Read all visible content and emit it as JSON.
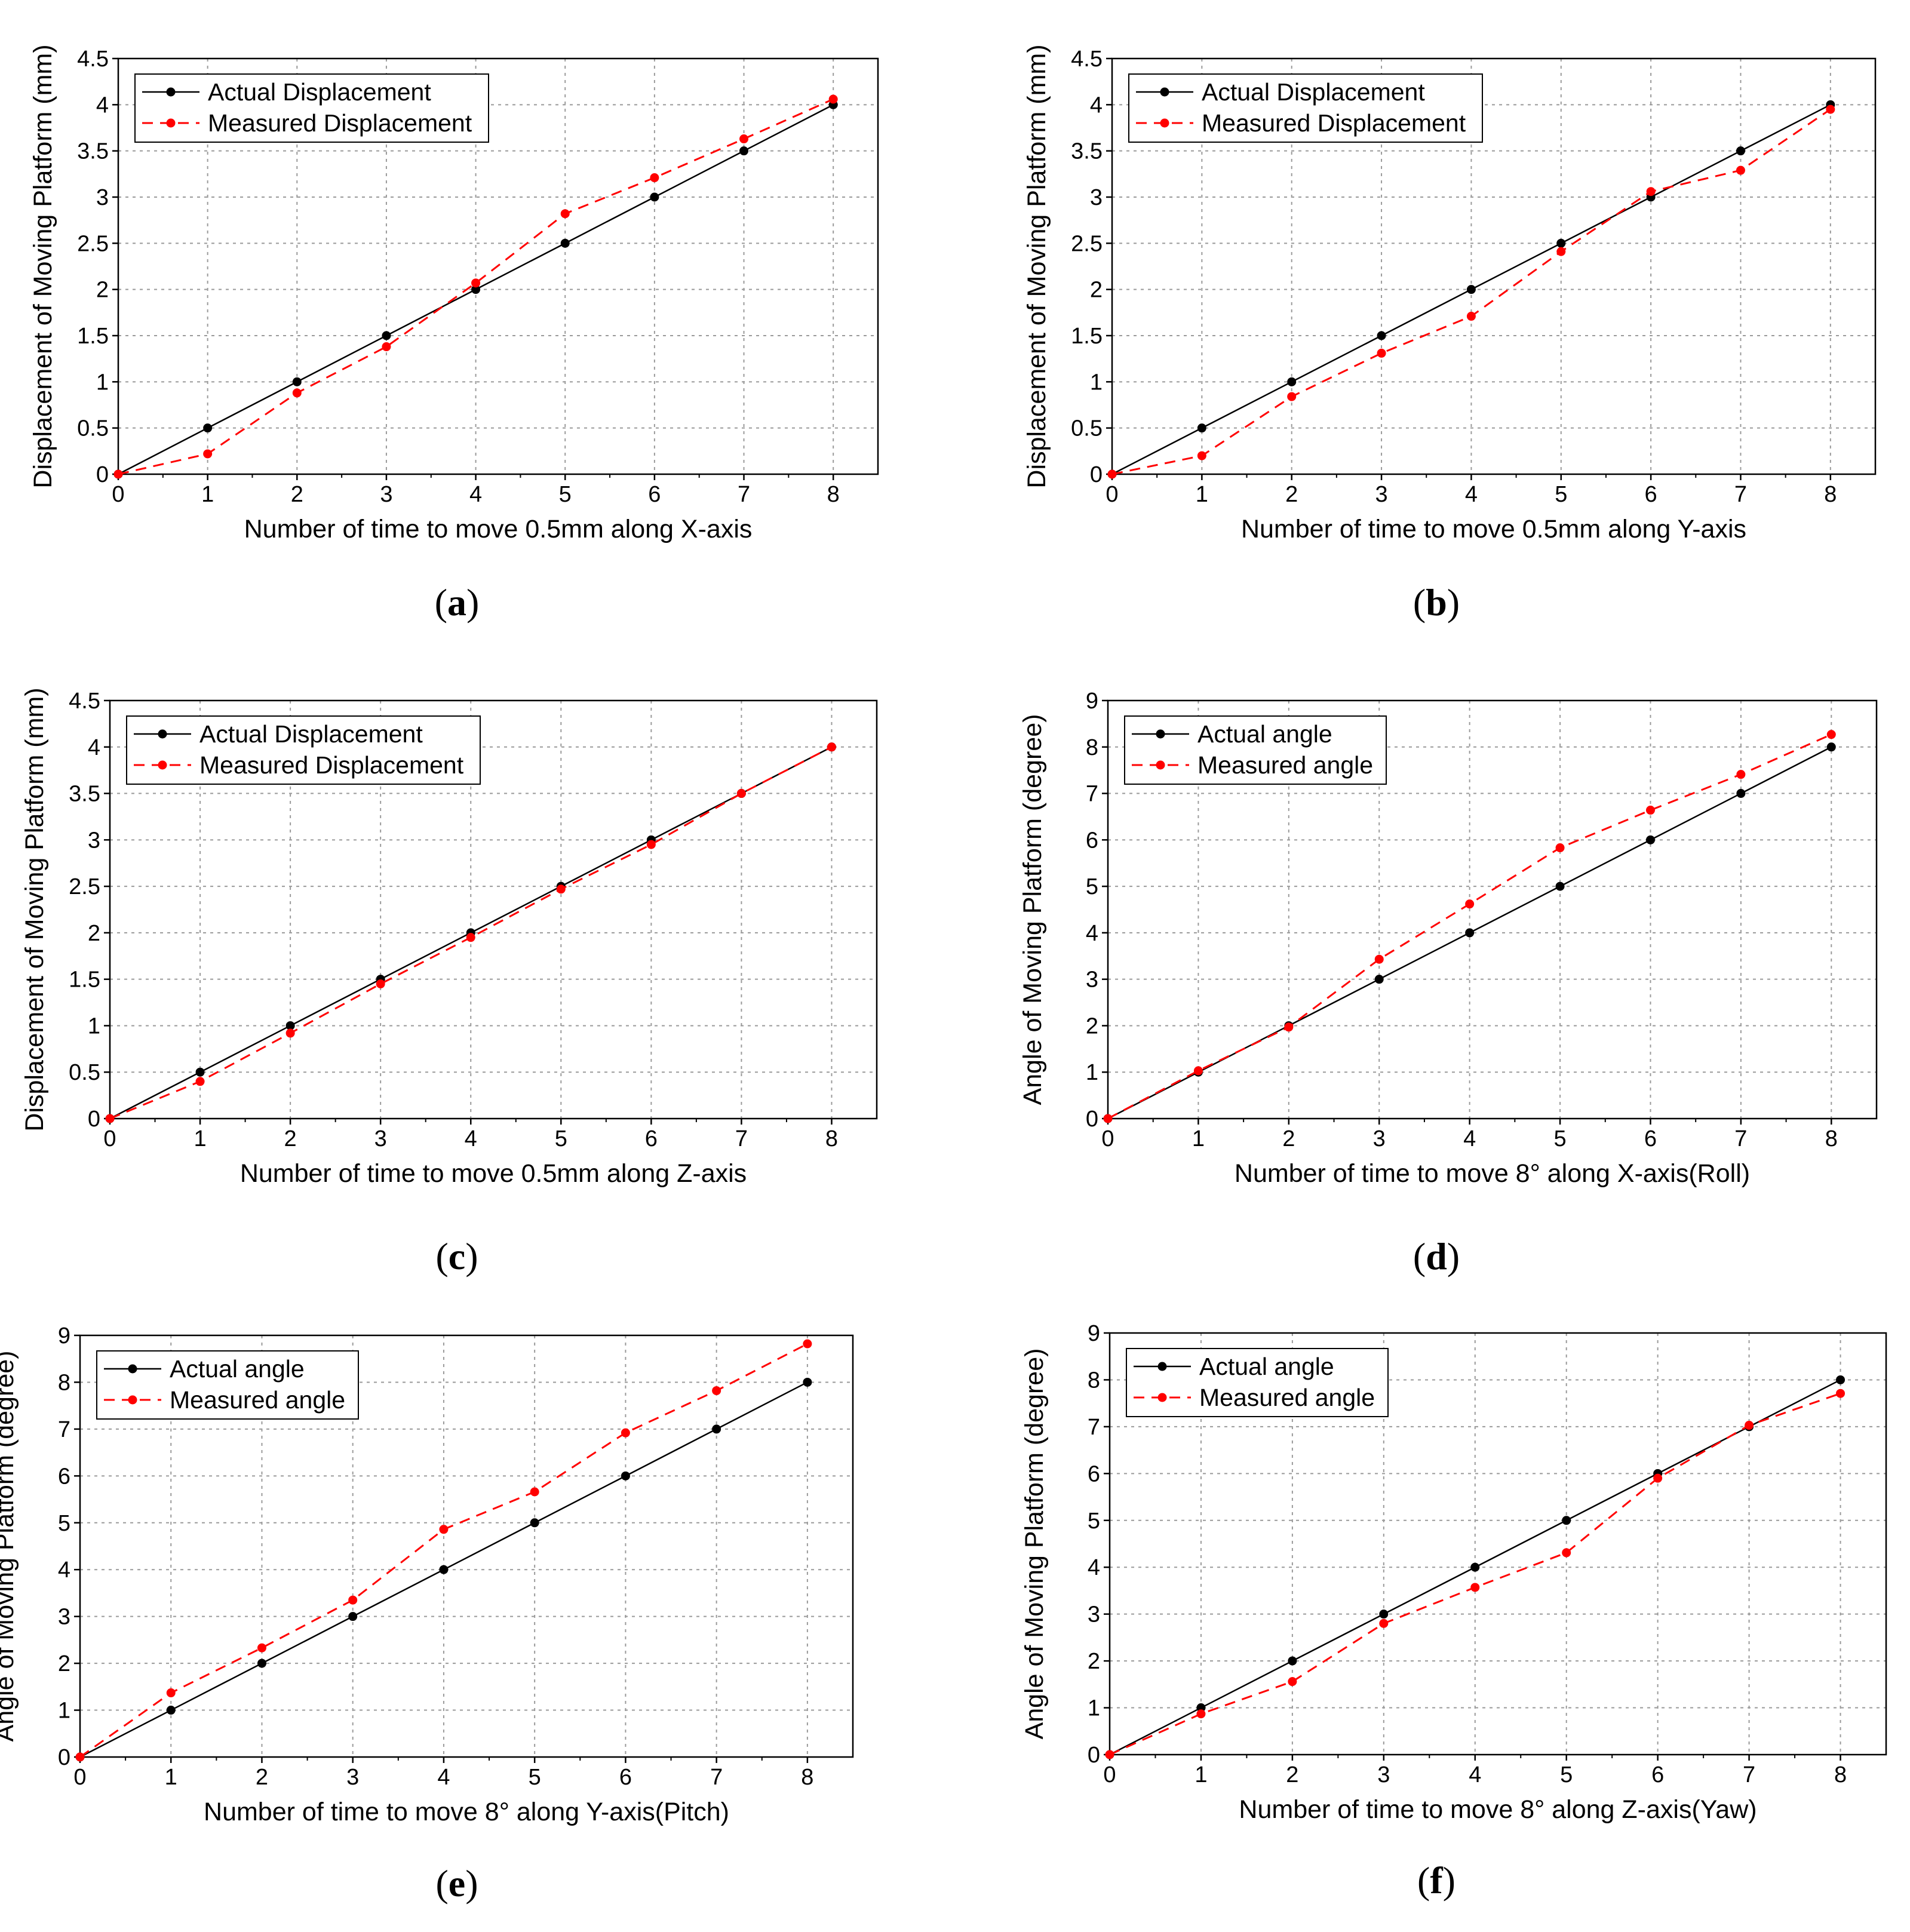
{
  "colors": {
    "actual": "#000000",
    "measured": "#ff0000",
    "grid": "#9a9a9a",
    "axes": "#000000"
  },
  "chart_data": [
    {
      "panel": "a",
      "caption_open": "(",
      "caption_letter": "a",
      "caption_close": ")",
      "type": "line",
      "xlabel": "Number of time to move 0.5mm along X-axis",
      "ylabel": "Displacement of Moving Platform (mm)",
      "xlim": [
        0,
        8.5
      ],
      "ylim": [
        0,
        4.5
      ],
      "xticks": [
        "0",
        "1",
        "2",
        "3",
        "4",
        "5",
        "6",
        "7",
        "8"
      ],
      "yticks": [
        "0",
        "0.5",
        "1",
        "1.5",
        "2",
        "2.5",
        "3",
        "3.5",
        "4",
        "4.5"
      ],
      "grid": true,
      "legend_position": "top-left",
      "x": [
        0,
        1,
        2,
        3,
        4,
        5,
        6,
        7,
        8
      ],
      "series": [
        {
          "name": "Actual Displacement",
          "style": "solid",
          "values": [
            0,
            0.5,
            1,
            1.5,
            2,
            2.5,
            3,
            3.5,
            4
          ]
        },
        {
          "name": "Measured Displacement",
          "style": "dashed",
          "values": [
            0,
            0.22,
            0.88,
            1.38,
            2.07,
            2.82,
            3.21,
            3.63,
            4.06
          ]
        }
      ]
    },
    {
      "panel": "b",
      "caption_open": "(",
      "caption_letter": "b",
      "caption_close": ")",
      "type": "line",
      "xlabel": "Number of time to move 0.5mm along Y-axis",
      "ylabel": "Displacement of Moving Platform (mm)",
      "xlim": [
        0,
        8.5
      ],
      "ylim": [
        0,
        4.5
      ],
      "xticks": [
        "0",
        "1",
        "2",
        "3",
        "4",
        "5",
        "6",
        "7",
        "8"
      ],
      "yticks": [
        "0",
        "0.5",
        "1",
        "1.5",
        "2",
        "2.5",
        "3",
        "3.5",
        "4",
        "4.5"
      ],
      "grid": true,
      "legend_position": "top-left",
      "x": [
        0,
        1,
        2,
        3,
        4,
        5,
        6,
        7,
        8
      ],
      "series": [
        {
          "name": "Actual Displacement",
          "style": "solid",
          "values": [
            0,
            0.5,
            1,
            1.5,
            2,
            2.5,
            3,
            3.5,
            4
          ]
        },
        {
          "name": "Measured Displacement",
          "style": "dashed",
          "values": [
            0,
            0.2,
            0.84,
            1.31,
            1.71,
            2.41,
            3.06,
            3.29,
            3.95
          ]
        }
      ]
    },
    {
      "panel": "c",
      "caption_open": "(",
      "caption_letter": "c",
      "caption_close": ")",
      "type": "line",
      "xlabel": "Number of time to move 0.5mm along Z-axis",
      "ylabel": "Displacement of Moving Platform (mm)",
      "xlim": [
        0,
        8.5
      ],
      "ylim": [
        0,
        4.5
      ],
      "xticks": [
        "0",
        "1",
        "2",
        "3",
        "4",
        "5",
        "6",
        "7",
        "8"
      ],
      "yticks": [
        "0",
        "0.5",
        "1",
        "1.5",
        "2",
        "2.5",
        "3",
        "3.5",
        "4",
        "4.5"
      ],
      "grid": true,
      "legend_position": "top-left",
      "x": [
        0,
        1,
        2,
        3,
        4,
        5,
        6,
        7,
        8
      ],
      "series": [
        {
          "name": "Actual Displacement",
          "style": "solid",
          "values": [
            0,
            0.5,
            1,
            1.5,
            2,
            2.5,
            3,
            3.5,
            4
          ]
        },
        {
          "name": "Measured Displacement",
          "style": "dashed",
          "values": [
            0,
            0.4,
            0.92,
            1.45,
            1.95,
            2.47,
            2.95,
            3.5,
            4
          ]
        }
      ]
    },
    {
      "panel": "d",
      "caption_open": "(",
      "caption_letter": "d",
      "caption_close": ")",
      "type": "line",
      "xlabel": "Number of time to move 8° along X-axis(Roll)",
      "ylabel": "Angle of Moving Platform (degree)",
      "xlim": [
        0,
        8.5
      ],
      "ylim": [
        0,
        9
      ],
      "xticks": [
        "0",
        "1",
        "2",
        "3",
        "4",
        "5",
        "6",
        "7",
        "8"
      ],
      "yticks": [
        "0",
        "1",
        "2",
        "3",
        "4",
        "5",
        "6",
        "7",
        "8",
        "9"
      ],
      "grid": true,
      "legend_position": "top-left",
      "x": [
        0,
        1,
        2,
        3,
        4,
        5,
        6,
        7,
        8
      ],
      "series": [
        {
          "name": "Actual angle",
          "style": "solid",
          "values": [
            0,
            1,
            2,
            3,
            4,
            5,
            6,
            7,
            8
          ]
        },
        {
          "name": "Measured angle",
          "style": "dashed",
          "values": [
            0,
            1.03,
            1.97,
            3.43,
            4.62,
            5.83,
            6.64,
            7.41,
            8.27
          ]
        }
      ]
    },
    {
      "panel": "e",
      "caption_open": "(",
      "caption_letter": "e",
      "caption_close": ")",
      "type": "line",
      "xlabel": "Number of time to move 8° along Y-axis(Pitch)",
      "ylabel": "Angle of Moving Platform (degree)",
      "xlim": [
        0,
        8.5
      ],
      "ylim": [
        0,
        9
      ],
      "xticks": [
        "0",
        "1",
        "2",
        "3",
        "4",
        "5",
        "6",
        "7",
        "8"
      ],
      "yticks": [
        "0",
        "1",
        "2",
        "3",
        "4",
        "5",
        "6",
        "7",
        "8",
        "9"
      ],
      "grid": true,
      "legend_position": "top-left",
      "x": [
        0,
        1,
        2,
        3,
        4,
        5,
        6,
        7,
        8
      ],
      "series": [
        {
          "name": "Actual angle",
          "style": "solid",
          "values": [
            0,
            1,
            2,
            3,
            4,
            5,
            6,
            7,
            8
          ]
        },
        {
          "name": "Measured angle",
          "style": "dashed",
          "values": [
            0,
            1.37,
            2.33,
            3.35,
            4.86,
            5.66,
            6.92,
            7.82,
            8.82
          ]
        }
      ]
    },
    {
      "panel": "f",
      "caption_open": "(",
      "caption_letter": "f",
      "caption_close": ")",
      "type": "line",
      "xlabel": "Number of time to move 8° along Z-axis(Yaw)",
      "ylabel": "Angle of Moving Platform (degree)",
      "xlim": [
        0,
        8.5
      ],
      "ylim": [
        0,
        9
      ],
      "xticks": [
        "0",
        "1",
        "2",
        "3",
        "4",
        "5",
        "6",
        "7",
        "8"
      ],
      "yticks": [
        "0",
        "1",
        "2",
        "3",
        "4",
        "5",
        "6",
        "7",
        "8",
        "9"
      ],
      "grid": true,
      "legend_position": "top-left",
      "x": [
        0,
        1,
        2,
        3,
        4,
        5,
        6,
        7,
        8
      ],
      "series": [
        {
          "name": "Actual angle",
          "style": "solid",
          "values": [
            0,
            1,
            2,
            3,
            4,
            5,
            6,
            7,
            8
          ]
        },
        {
          "name": "Measured angle",
          "style": "dashed",
          "values": [
            0,
            0.87,
            1.56,
            2.8,
            3.57,
            4.31,
            5.9,
            7.03,
            7.71
          ]
        }
      ]
    }
  ]
}
